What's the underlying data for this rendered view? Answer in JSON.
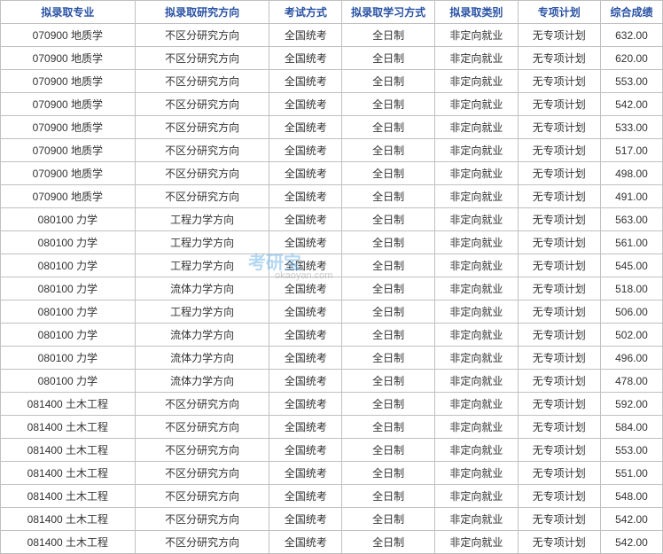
{
  "headers": {
    "major": "拟录取专业",
    "direction": "拟录取研究方向",
    "exam": "考试方式",
    "study": "拟录取学习方式",
    "category": "拟录取类别",
    "plan": "专项计划",
    "score": "综合成绩"
  },
  "rows": [
    {
      "major": "070900 地质学",
      "direction": "不区分研究方向",
      "exam": "全国统考",
      "study": "全日制",
      "category": "非定向就业",
      "plan": "无专项计划",
      "score": "632.00"
    },
    {
      "major": "070900 地质学",
      "direction": "不区分研究方向",
      "exam": "全国统考",
      "study": "全日制",
      "category": "非定向就业",
      "plan": "无专项计划",
      "score": "620.00"
    },
    {
      "major": "070900 地质学",
      "direction": "不区分研究方向",
      "exam": "全国统考",
      "study": "全日制",
      "category": "非定向就业",
      "plan": "无专项计划",
      "score": "553.00"
    },
    {
      "major": "070900 地质学",
      "direction": "不区分研究方向",
      "exam": "全国统考",
      "study": "全日制",
      "category": "非定向就业",
      "plan": "无专项计划",
      "score": "542.00"
    },
    {
      "major": "070900 地质学",
      "direction": "不区分研究方向",
      "exam": "全国统考",
      "study": "全日制",
      "category": "非定向就业",
      "plan": "无专项计划",
      "score": "533.00"
    },
    {
      "major": "070900 地质学",
      "direction": "不区分研究方向",
      "exam": "全国统考",
      "study": "全日制",
      "category": "非定向就业",
      "plan": "无专项计划",
      "score": "517.00"
    },
    {
      "major": "070900 地质学",
      "direction": "不区分研究方向",
      "exam": "全国统考",
      "study": "全日制",
      "category": "非定向就业",
      "plan": "无专项计划",
      "score": "498.00"
    },
    {
      "major": "070900 地质学",
      "direction": "不区分研究方向",
      "exam": "全国统考",
      "study": "全日制",
      "category": "非定向就业",
      "plan": "无专项计划",
      "score": "491.00"
    },
    {
      "major": "080100 力学",
      "direction": "工程力学方向",
      "exam": "全国统考",
      "study": "全日制",
      "category": "非定向就业",
      "plan": "无专项计划",
      "score": "563.00"
    },
    {
      "major": "080100 力学",
      "direction": "工程力学方向",
      "exam": "全国统考",
      "study": "全日制",
      "category": "非定向就业",
      "plan": "无专项计划",
      "score": "561.00"
    },
    {
      "major": "080100 力学",
      "direction": "工程力学方向",
      "exam": "全国统考",
      "study": "全日制",
      "category": "非定向就业",
      "plan": "无专项计划",
      "score": "545.00"
    },
    {
      "major": "080100 力学",
      "direction": "流体力学方向",
      "exam": "全国统考",
      "study": "全日制",
      "category": "非定向就业",
      "plan": "无专项计划",
      "score": "518.00"
    },
    {
      "major": "080100 力学",
      "direction": "工程力学方向",
      "exam": "全国统考",
      "study": "全日制",
      "category": "非定向就业",
      "plan": "无专项计划",
      "score": "506.00"
    },
    {
      "major": "080100 力学",
      "direction": "流体力学方向",
      "exam": "全国统考",
      "study": "全日制",
      "category": "非定向就业",
      "plan": "无专项计划",
      "score": "502.00"
    },
    {
      "major": "080100 力学",
      "direction": "流体力学方向",
      "exam": "全国统考",
      "study": "全日制",
      "category": "非定向就业",
      "plan": "无专项计划",
      "score": "496.00"
    },
    {
      "major": "080100 力学",
      "direction": "流体力学方向",
      "exam": "全国统考",
      "study": "全日制",
      "category": "非定向就业",
      "plan": "无专项计划",
      "score": "478.00"
    },
    {
      "major": "081400 土木工程",
      "direction": "不区分研究方向",
      "exam": "全国统考",
      "study": "全日制",
      "category": "非定向就业",
      "plan": "无专项计划",
      "score": "592.00"
    },
    {
      "major": "081400 土木工程",
      "direction": "不区分研究方向",
      "exam": "全国统考",
      "study": "全日制",
      "category": "非定向就业",
      "plan": "无专项计划",
      "score": "584.00"
    },
    {
      "major": "081400 土木工程",
      "direction": "不区分研究方向",
      "exam": "全国统考",
      "study": "全日制",
      "category": "非定向就业",
      "plan": "无专项计划",
      "score": "553.00"
    },
    {
      "major": "081400 土木工程",
      "direction": "不区分研究方向",
      "exam": "全国统考",
      "study": "全日制",
      "category": "非定向就业",
      "plan": "无专项计划",
      "score": "551.00"
    },
    {
      "major": "081400 土木工程",
      "direction": "不区分研究方向",
      "exam": "全国统考",
      "study": "全日制",
      "category": "非定向就业",
      "plan": "无专项计划",
      "score": "548.00"
    },
    {
      "major": "081400 土木工程",
      "direction": "不区分研究方向",
      "exam": "全国统考",
      "study": "全日制",
      "category": "非定向就业",
      "plan": "无专项计划",
      "score": "542.00"
    },
    {
      "major": "081400 土木工程",
      "direction": "不区分研究方向",
      "exam": "全国统考",
      "study": "全日制",
      "category": "非定向就业",
      "plan": "无专项计划",
      "score": "542.00"
    }
  ],
  "watermark": {
    "main": "考研宝",
    "sub": "okaoyan.com"
  },
  "styles": {
    "header_color": "#2952a3",
    "border_color": "#c0c0c0",
    "text_color": "#333333",
    "background": "#ffffff",
    "font_size": 12,
    "watermark_color": "#6ab0e8"
  }
}
